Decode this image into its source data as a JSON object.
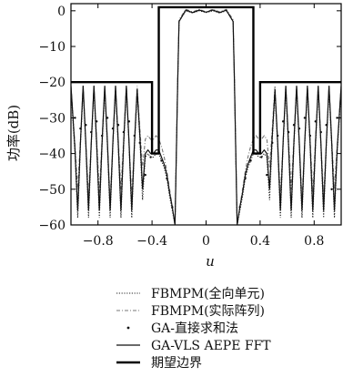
{
  "chart_data": {
    "type": "line",
    "title": "",
    "xlabel": "u",
    "ylabel": "功率(dB)",
    "xlim": [
      -1,
      1
    ],
    "ylim": [
      -60,
      2
    ],
    "grid": false,
    "legend_position": "bottom",
    "x_ticks": [
      -0.8,
      -0.4,
      0,
      0.4,
      0.8
    ],
    "x_tick_labels": [
      "−0.8",
      "−0.4",
      "0",
      "0.4",
      "0.8"
    ],
    "y_ticks": [
      0,
      -10,
      -20,
      -30,
      -40,
      -50,
      -60
    ],
    "y_tick_labels": [
      "0",
      "−10",
      "−20",
      "−30",
      "−40",
      "−50",
      "−60"
    ],
    "series": [
      {
        "name": "FBMPM(全向单元)",
        "style": "dotted",
        "color": "#222222",
        "x": [
          -1.0,
          -0.97,
          -0.95,
          -0.93,
          -0.91,
          -0.89,
          -0.87,
          -0.85,
          -0.83,
          -0.81,
          -0.79,
          -0.77,
          -0.75,
          -0.73,
          -0.71,
          -0.69,
          -0.67,
          -0.65,
          -0.63,
          -0.61,
          -0.59,
          -0.57,
          -0.55,
          -0.53,
          -0.51,
          -0.49,
          -0.47,
          -0.45,
          -0.43,
          -0.41,
          -0.39,
          -0.37,
          -0.35,
          -0.33,
          -0.31,
          -0.29,
          -0.27,
          -0.25,
          -0.23,
          -0.21,
          -0.2,
          -0.15,
          -0.1,
          -0.05,
          0,
          0.05,
          0.1,
          0.15,
          0.2,
          0.21,
          0.23,
          0.25,
          0.27,
          0.29,
          0.31,
          0.33,
          0.35,
          0.37,
          0.39,
          0.41,
          0.43,
          0.45,
          0.47,
          0.49,
          0.51,
          0.53,
          0.55,
          0.57,
          0.59,
          0.61,
          0.63,
          0.65,
          0.67,
          0.69,
          0.71,
          0.73,
          0.75,
          0.77,
          0.79,
          0.81,
          0.83,
          0.85,
          0.87,
          0.89,
          0.91,
          0.93,
          0.95,
          0.97,
          1.0
        ],
        "values": [
          -22,
          -40,
          -58,
          -38,
          -22,
          -38,
          -58,
          -38,
          -22,
          -38,
          -58,
          -38,
          -22,
          -38,
          -58,
          -38,
          -22,
          -38,
          -58,
          -38,
          -22,
          -38,
          -58,
          -38,
          -23,
          -36,
          -53,
          -41,
          -40,
          -41,
          -41,
          -40,
          -40,
          -42,
          -44,
          -47,
          -52,
          -56,
          -60,
          -20,
          -3,
          0,
          -0.6,
          0,
          -0.5,
          0,
          -0.6,
          0,
          -3,
          -20,
          -60,
          -56,
          -52,
          -47,
          -44,
          -42,
          -40,
          -40,
          -41,
          -41,
          -40,
          -41,
          -53,
          -36,
          -23,
          -38,
          -58,
          -38,
          -22,
          -38,
          -58,
          -38,
          -22,
          -38,
          -58,
          -38,
          -22,
          -38,
          -58,
          -38,
          -22,
          -38,
          -58,
          -38,
          -22,
          -38,
          -58,
          -40,
          -22
        ]
      },
      {
        "name": "FBMPM(实际阵列)",
        "style": "dash-dot",
        "color": "#777777",
        "x": [
          -1.0,
          -0.97,
          -0.95,
          -0.93,
          -0.91,
          -0.89,
          -0.87,
          -0.85,
          -0.83,
          -0.81,
          -0.79,
          -0.77,
          -0.75,
          -0.73,
          -0.71,
          -0.69,
          -0.67,
          -0.65,
          -0.63,
          -0.61,
          -0.59,
          -0.57,
          -0.55,
          -0.53,
          -0.51,
          -0.49,
          -0.47,
          -0.45,
          -0.43,
          -0.41,
          -0.39,
          -0.37,
          -0.35,
          -0.33,
          -0.31,
          -0.29,
          -0.27,
          -0.25,
          -0.23,
          -0.21,
          -0.2,
          -0.15,
          -0.1,
          -0.05,
          0,
          0.05,
          0.1,
          0.15,
          0.2,
          0.21,
          0.23,
          0.25,
          0.27,
          0.29,
          0.31,
          0.33,
          0.35,
          0.37,
          0.39,
          0.41,
          0.43,
          0.45,
          0.47,
          0.49,
          0.51,
          0.53,
          0.55,
          0.57,
          0.59,
          0.61,
          0.63,
          0.65,
          0.67,
          0.69,
          0.71,
          0.73,
          0.75,
          0.77,
          0.79,
          0.81,
          0.83,
          0.85,
          0.87,
          0.89,
          0.91,
          0.93,
          0.95,
          0.97,
          1.0
        ],
        "values": [
          -21,
          -38,
          -50,
          -36,
          -21,
          -37,
          -52,
          -37,
          -21,
          -36,
          -51,
          -36,
          -21,
          -37,
          -53,
          -37,
          -21,
          -36,
          -50,
          -36,
          -21,
          -37,
          -52,
          -37,
          -21,
          -33,
          -44,
          -36,
          -35,
          -36,
          -36,
          -35,
          -36,
          -38,
          -41,
          -45,
          -50,
          -55,
          -60,
          -19,
          -2.5,
          0.4,
          -0.3,
          0.4,
          -0.3,
          0.4,
          -0.3,
          0.4,
          -2.5,
          -19,
          -60,
          -55,
          -50,
          -45,
          -41,
          -38,
          -36,
          -35,
          -36,
          -36,
          -35,
          -36,
          -44,
          -33,
          -21,
          -37,
          -52,
          -37,
          -21,
          -36,
          -50,
          -36,
          -21,
          -37,
          -53,
          -37,
          -21,
          -36,
          -51,
          -36,
          -21,
          -37,
          -52,
          -37,
          -21,
          -36,
          -50,
          -38,
          -21
        ]
      },
      {
        "name": "GA-直接求和法",
        "style": "points",
        "color": "#111111",
        "x": [
          -0.97,
          -0.93,
          -0.89,
          -0.85,
          -0.81,
          -0.77,
          -0.73,
          -0.69,
          -0.65,
          -0.61,
          -0.57,
          -0.53,
          -0.49,
          -0.45,
          -0.41,
          -0.37,
          -0.33,
          -0.29,
          -0.25,
          0.25,
          0.29,
          0.33,
          0.37,
          0.41,
          0.45,
          0.49,
          0.53,
          0.57,
          0.61,
          0.65,
          0.69,
          0.73,
          0.77,
          0.81,
          0.85,
          0.89,
          0.93,
          0.97
        ],
        "values": [
          -30,
          -33,
          -32,
          -34,
          -31,
          -35,
          -30,
          -33,
          -32,
          -34,
          -31,
          -35,
          -37,
          -46,
          -41,
          -40,
          -42,
          -47,
          -55,
          -55,
          -47,
          -42,
          -40,
          -41,
          -46,
          -37,
          -35,
          -31,
          -34,
          -32,
          -33,
          -30,
          -35,
          -31,
          -34,
          -32,
          -50,
          -30
        ]
      },
      {
        "name": "GA-VLS AEPE FFT",
        "style": "solid",
        "color": "#111111",
        "x": [
          -1.0,
          -0.97,
          -0.95,
          -0.93,
          -0.91,
          -0.89,
          -0.87,
          -0.85,
          -0.83,
          -0.81,
          -0.79,
          -0.77,
          -0.75,
          -0.73,
          -0.71,
          -0.69,
          -0.67,
          -0.65,
          -0.63,
          -0.61,
          -0.59,
          -0.57,
          -0.55,
          -0.53,
          -0.51,
          -0.49,
          -0.47,
          -0.45,
          -0.43,
          -0.41,
          -0.39,
          -0.37,
          -0.35,
          -0.33,
          -0.31,
          -0.29,
          -0.27,
          -0.25,
          -0.23,
          -0.21,
          -0.2,
          -0.15,
          -0.1,
          -0.05,
          0,
          0.05,
          0.1,
          0.15,
          0.2,
          0.21,
          0.23,
          0.25,
          0.27,
          0.29,
          0.31,
          0.33,
          0.35,
          0.37,
          0.39,
          0.41,
          0.43,
          0.45,
          0.47,
          0.49,
          0.51,
          0.53,
          0.55,
          0.57,
          0.59,
          0.61,
          0.63,
          0.65,
          0.67,
          0.69,
          0.71,
          0.73,
          0.75,
          0.77,
          0.79,
          0.81,
          0.83,
          0.85,
          0.87,
          0.89,
          0.91,
          0.93,
          0.95,
          0.97,
          1.0
        ],
        "values": [
          -21,
          -39,
          -56,
          -37,
          -21,
          -37,
          -56,
          -37,
          -21,
          -37,
          -56,
          -37,
          -21,
          -37,
          -56,
          -37,
          -21,
          -37,
          -56,
          -37,
          -21,
          -37,
          -56,
          -37,
          -22,
          -35,
          -50,
          -40,
          -39,
          -40,
          -40,
          -39,
          -39,
          -41,
          -43,
          -46,
          -51,
          -55,
          -60,
          -20,
          -3,
          0.2,
          -0.5,
          0.2,
          -0.4,
          0.2,
          -0.5,
          0.2,
          -3,
          -20,
          -60,
          -55,
          -51,
          -46,
          -43,
          -41,
          -39,
          -39,
          -40,
          -40,
          -39,
          -40,
          -50,
          -35,
          -22,
          -37,
          -56,
          -37,
          -21,
          -37,
          -56,
          -37,
          -21,
          -37,
          -56,
          -37,
          -21,
          -37,
          -56,
          -37,
          -21,
          -37,
          -56,
          -37,
          -21,
          -37,
          -56,
          -39,
          -21
        ]
      },
      {
        "name": "期望边界",
        "style": "bold",
        "color": "#000000",
        "x": [
          -1.0,
          -0.4,
          -0.4,
          -0.35,
          -0.35,
          -0.2,
          -0.2,
          0.2,
          0.2,
          0.35,
          0.35,
          0.4,
          0.4,
          1.0
        ],
        "values": [
          -20,
          -20,
          -40,
          -40,
          1,
          1,
          1,
          1,
          1,
          1,
          -40,
          -40,
          -20,
          -20
        ]
      }
    ]
  }
}
